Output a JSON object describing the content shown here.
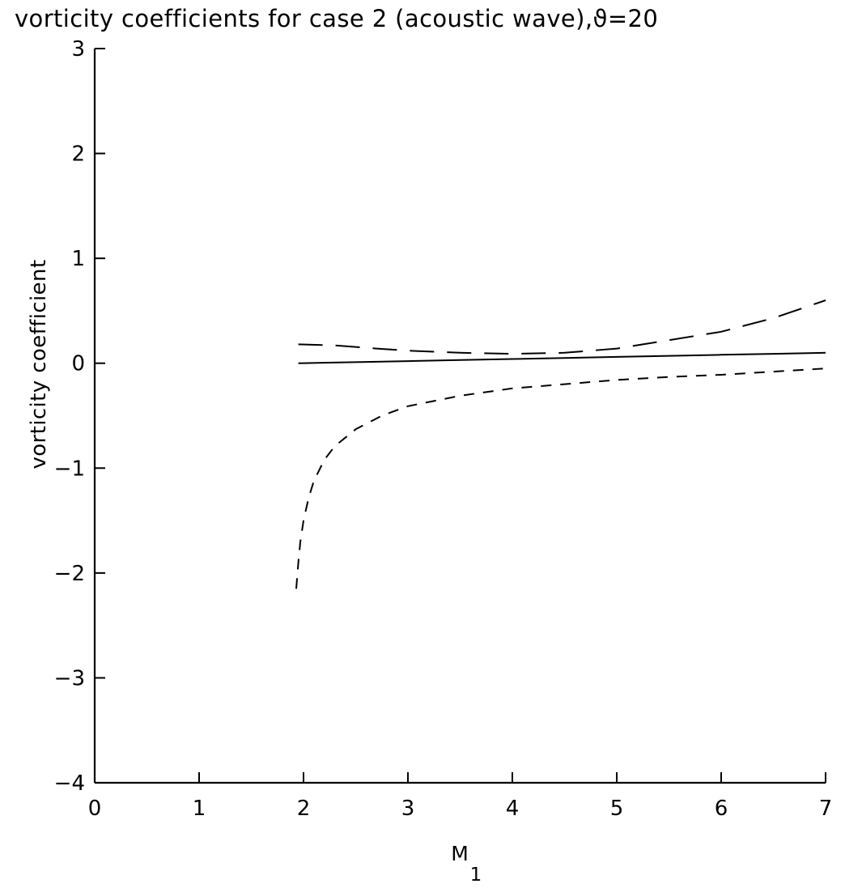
{
  "chart_data": {
    "type": "line",
    "title": "vorticity coefficients for case 2 (acoustic wave),",
    "title_symbol": "ϑ=20",
    "xlabel": "M",
    "xlabel_subscript": "1",
    "ylabel": "vorticity coefficient",
    "xlim": [
      0,
      7
    ],
    "ylim": [
      -4,
      3
    ],
    "xticks": [
      0,
      1,
      2,
      3,
      4,
      5,
      6,
      7
    ],
    "yticks": [
      -4,
      -3,
      -2,
      -1,
      0,
      1,
      2,
      3
    ],
    "grid": false,
    "legend": "none",
    "series": [
      {
        "style": "solid",
        "x": [
          1.95,
          2.5,
          3.0,
          3.5,
          4.0,
          4.5,
          5.0,
          5.5,
          6.0,
          6.5,
          7.0
        ],
        "y": [
          0.0,
          0.01,
          0.02,
          0.03,
          0.04,
          0.05,
          0.06,
          0.07,
          0.08,
          0.09,
          0.1
        ]
      },
      {
        "style": "long-dash",
        "x": [
          1.95,
          2.3,
          2.7,
          3.0,
          3.5,
          4.0,
          4.5,
          5.0,
          5.5,
          6.0,
          6.5,
          7.0
        ],
        "y": [
          0.18,
          0.17,
          0.14,
          0.12,
          0.1,
          0.09,
          0.1,
          0.14,
          0.22,
          0.3,
          0.43,
          0.6
        ]
      },
      {
        "style": "short-dash",
        "x": [
          1.93,
          1.95,
          1.97,
          2.0,
          2.05,
          2.1,
          2.2,
          2.3,
          2.5,
          2.75,
          3.0,
          3.5,
          4.0,
          4.5,
          5.0,
          5.5,
          6.0,
          6.5,
          7.0
        ],
        "y": [
          -2.15,
          -1.9,
          -1.7,
          -1.5,
          -1.28,
          -1.12,
          -0.92,
          -0.79,
          -0.63,
          -0.5,
          -0.41,
          -0.31,
          -0.24,
          -0.2,
          -0.16,
          -0.13,
          -0.11,
          -0.08,
          -0.05
        ]
      }
    ]
  }
}
